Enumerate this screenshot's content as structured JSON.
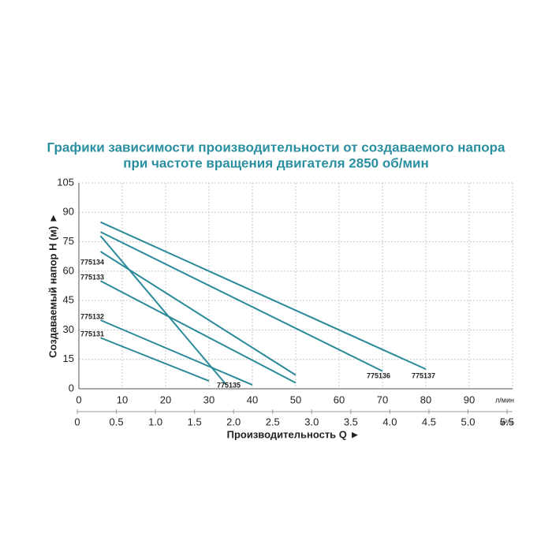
{
  "chart_data": {
    "type": "line",
    "title": "Графики зависимости производительности от создаваемого напора",
    "subtitle": "при частоте вращения двигателя 2850 об/мин",
    "y_label": "Создаваемый напор H (м) ►",
    "x_label": "Производительность Q ►",
    "x_unit": "л/мин",
    "x2_unit": "м³/ч",
    "xlim": [
      0,
      100
    ],
    "xticks": [
      0,
      10,
      20,
      30,
      40,
      50,
      60,
      70,
      80,
      90
    ],
    "x2lim": [
      0,
      5.57
    ],
    "x2ticks": [
      0,
      0.5,
      {
        "value": 1,
        "label": "1.0"
      },
      1.5,
      {
        "value": 2,
        "label": "2.0"
      },
      2.5,
      {
        "value": 3,
        "label": "3.0"
      },
      3.5,
      {
        "value": 4,
        "label": "4.0"
      },
      4.5,
      {
        "value": 5,
        "label": "5.0"
      },
      5.5
    ],
    "ylim": [
      0,
      105
    ],
    "yticks": [
      0,
      15,
      30,
      45,
      60,
      75,
      90,
      105
    ],
    "grid": true,
    "series": [
      {
        "name": "775131",
        "color": "#2a8a9a",
        "x": [
          5,
          30
        ],
        "values": [
          26,
          4
        ]
      },
      {
        "name": "775132",
        "color": "#2a8a9a",
        "x": [
          5,
          40
        ],
        "values": [
          35,
          2
        ]
      },
      {
        "name": "775133",
        "color": "#2a8a9a",
        "x": [
          5,
          50
        ],
        "values": [
          55,
          3
        ]
      },
      {
        "name": "775134",
        "color": "#2a8a9a",
        "x": [
          5,
          50
        ],
        "values": [
          70,
          7
        ]
      },
      {
        "name": "775135",
        "color": "#2a8a9a",
        "x": [
          5,
          34
        ],
        "values": [
          78,
          2
        ]
      },
      {
        "name": "775136",
        "color": "#2a8a9a",
        "x": [
          5,
          70
        ],
        "values": [
          80,
          9
        ]
      },
      {
        "name": "775137",
        "color": "#2a8a9a",
        "x": [
          5,
          80
        ],
        "values": [
          85,
          10
        ]
      }
    ]
  }
}
